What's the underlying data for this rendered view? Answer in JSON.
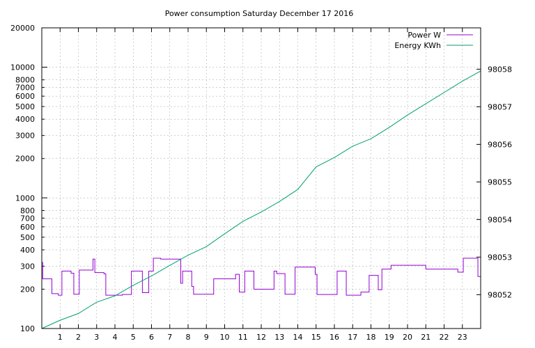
{
  "chart_data": {
    "type": "line",
    "title": "Power consumption Saturday December 17 2016",
    "xlabel": "",
    "ylabel": "",
    "y2label": "",
    "xlim": [
      0,
      24
    ],
    "ylim": [
      100,
      20000
    ],
    "y_scale": "log",
    "y2lim": [
      98051.1,
      98059.1
    ],
    "grid": true,
    "legend_position": "top-right",
    "x_ticks": [
      1,
      2,
      3,
      4,
      5,
      6,
      7,
      8,
      9,
      10,
      11,
      12,
      13,
      14,
      15,
      16,
      17,
      18,
      19,
      20,
      21,
      22,
      23
    ],
    "x_tick_labels": [
      "1",
      "2",
      "3",
      "4",
      "5",
      "6",
      "7",
      "8",
      "9",
      "10",
      "11",
      "12",
      "13",
      "14",
      "15",
      "16",
      "17",
      "18",
      "19",
      "20",
      "21",
      "22",
      "23"
    ],
    "y_major_ticks": [
      100,
      1000,
      10000
    ],
    "y_minor_ticks": [
      200,
      300,
      400,
      500,
      600,
      700,
      800,
      2000,
      3000,
      4000,
      5000,
      6000,
      7000,
      8000,
      20000
    ],
    "y_tick_labels": [
      "100",
      "200",
      "300",
      "400",
      "500",
      "600",
      "700",
      "800",
      "1000",
      "2000",
      "3000",
      "4000",
      "5000",
      "6000",
      "7000",
      "8000",
      "10000",
      "20000"
    ],
    "y_tick_values": [
      100,
      200,
      300,
      400,
      500,
      600,
      700,
      800,
      1000,
      2000,
      3000,
      4000,
      5000,
      6000,
      7000,
      8000,
      10000,
      20000
    ],
    "y2_ticks": [
      98052,
      98053,
      98054,
      98055,
      98056,
      98057,
      98058
    ],
    "y2_tick_labels": [
      "98052",
      "98053",
      "98054",
      "98055",
      "98056",
      "98057",
      "98058"
    ],
    "colors": {
      "power": "#9400d3",
      "energy": "#009e73"
    },
    "series": [
      {
        "name": "Power W",
        "axis": "y",
        "step": true,
        "x": [
          0,
          0.05,
          0.55,
          0.9,
          1.1,
          1.6,
          1.75,
          2.05,
          2.8,
          2.9,
          3.4,
          3.5,
          4.4,
          4.9,
          5.5,
          5.85,
          6.1,
          6.5,
          7.6,
          7.7,
          8.2,
          8.3,
          9.4,
          10.6,
          10.8,
          11.1,
          11.6,
          12.7,
          12.85,
          13.3,
          13.85,
          14.95,
          15.05,
          16.15,
          16.65,
          17.2,
          17.45,
          17.9,
          18.4,
          18.6,
          19.1,
          21.0,
          22.75,
          23.05,
          23.5,
          23.85,
          24.0
        ],
        "y": [
          320,
          240,
          185,
          180,
          275,
          265,
          183,
          280,
          340,
          268,
          262,
          180,
          182,
          275,
          188,
          275,
          345,
          340,
          222,
          275,
          210,
          183,
          240,
          260,
          190,
          275,
          200,
          275,
          263,
          183,
          295,
          260,
          182,
          275,
          180,
          180,
          190,
          255,
          198,
          285,
          305,
          285,
          270,
          345,
          345,
          250,
          250
        ]
      },
      {
        "name": "Energy KWh",
        "axis": "y2",
        "step": false,
        "x": [
          0,
          1,
          2,
          3,
          4,
          5,
          6,
          7,
          8,
          9,
          10,
          11,
          12,
          13,
          14,
          15,
          16,
          17,
          18,
          19,
          20,
          21,
          22,
          23,
          24
        ],
        "y": [
          98051.1,
          98051.32,
          98051.5,
          98051.8,
          98051.97,
          98052.25,
          98052.5,
          98052.78,
          98053.05,
          98053.28,
          98053.62,
          98053.95,
          98054.2,
          98054.48,
          98054.8,
          98055.4,
          98055.65,
          98055.95,
          98056.15,
          98056.45,
          98056.78,
          98057.08,
          98057.38,
          98057.68,
          98057.95
        ]
      }
    ]
  }
}
